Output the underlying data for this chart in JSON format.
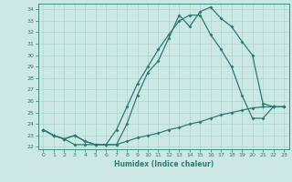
{
  "xlabel": "Humidex (Indice chaleur)",
  "hours": [
    0,
    1,
    2,
    3,
    4,
    5,
    6,
    7,
    8,
    9,
    10,
    11,
    12,
    13,
    14,
    15,
    16,
    17,
    18,
    19,
    20,
    21,
    22,
    23
  ],
  "line_top": [
    23.5,
    23.0,
    22.7,
    23.0,
    22.5,
    22.2,
    22.2,
    22.2,
    24.0,
    26.5,
    28.5,
    29.5,
    31.5,
    33.5,
    32.5,
    33.8,
    34.2,
    33.2,
    32.5,
    31.2,
    30.0,
    25.8,
    25.5,
    25.5
  ],
  "line_mid": [
    23.5,
    23.0,
    22.7,
    23.0,
    22.5,
    22.2,
    22.2,
    23.5,
    25.5,
    27.5,
    29.0,
    30.5,
    31.8,
    33.0,
    33.5,
    33.5,
    31.8,
    30.5,
    29.0,
    26.5,
    24.5,
    24.5,
    25.5,
    25.5
  ],
  "line_min": [
    23.5,
    23.0,
    22.7,
    22.2,
    22.2,
    22.2,
    22.2,
    22.2,
    22.5,
    22.8,
    23.0,
    23.2,
    23.5,
    23.7,
    24.0,
    24.2,
    24.5,
    24.8,
    25.0,
    25.2,
    25.4,
    25.5,
    25.5,
    25.5
  ],
  "color": "#2a7d72",
  "bg_color": "#cce8e4",
  "grid_color": "#aacfc9",
  "ylim": [
    21.8,
    34.5
  ],
  "yticks": [
    22,
    23,
    24,
    25,
    26,
    27,
    28,
    29,
    30,
    31,
    32,
    33,
    34
  ],
  "xticks": [
    0,
    1,
    2,
    3,
    4,
    5,
    6,
    7,
    8,
    9,
    10,
    11,
    12,
    13,
    14,
    15,
    16,
    17,
    18,
    19,
    20,
    21,
    22,
    23
  ],
  "linewidth": 0.9,
  "markersize": 2.0
}
